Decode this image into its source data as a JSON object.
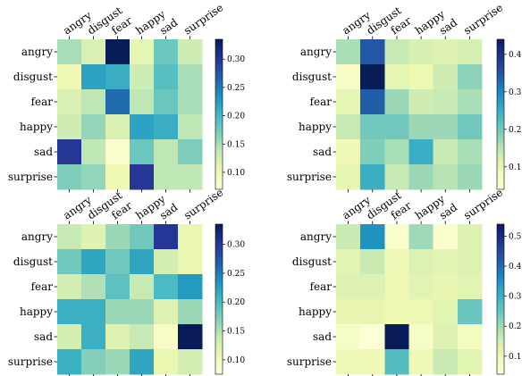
{
  "chart_data": [
    {
      "type": "heatmap",
      "title": "",
      "xlabel": "",
      "ylabel": "",
      "x_categories": [
        "angry",
        "disgust",
        "fear",
        "happy",
        "sad",
        "surprise"
      ],
      "y_categories": [
        "angry",
        "disgust",
        "fear",
        "happy",
        "sad",
        "surprise"
      ],
      "colormap": "YlGnBu",
      "colorbar": {
        "vmin": 0.07,
        "vmax": 0.335,
        "ticks": [
          0.1,
          0.15,
          0.2,
          0.25,
          0.3
        ],
        "tick_labels": [
          "0.10",
          "0.15",
          "0.20",
          "0.25",
          "0.30"
        ]
      },
      "values": [
        [
          0.15,
          0.12,
          0.335,
          0.11,
          0.18,
          0.13
        ],
        [
          0.1,
          0.22,
          0.21,
          0.13,
          0.19,
          0.15
        ],
        [
          0.12,
          0.14,
          0.26,
          0.14,
          0.18,
          0.15
        ],
        [
          0.13,
          0.16,
          0.12,
          0.22,
          0.21,
          0.14
        ],
        [
          0.3,
          0.14,
          0.08,
          0.18,
          0.14,
          0.17
        ],
        [
          0.17,
          0.16,
          0.1,
          0.3,
          0.14,
          0.14
        ]
      ]
    },
    {
      "type": "heatmap",
      "title": "",
      "xlabel": "",
      "ylabel": "",
      "x_categories": [
        "angry",
        "disgust",
        "fear",
        "happy",
        "sad",
        "surprise"
      ],
      "y_categories": [
        "angry",
        "disgust",
        "fear",
        "happy",
        "sad",
        "surprise"
      ],
      "colormap": "YlGnBu",
      "colorbar": {
        "vmin": 0.04,
        "vmax": 0.44,
        "ticks": [
          0.1,
          0.2,
          0.3,
          0.4
        ],
        "tick_labels": [
          "0.1",
          "0.2",
          "0.3",
          "0.4"
        ]
      },
      "values": [
        [
          0.16,
          0.35,
          0.14,
          0.12,
          0.11,
          0.12
        ],
        [
          0.06,
          0.44,
          0.1,
          0.09,
          0.13,
          0.18
        ],
        [
          0.1,
          0.34,
          0.17,
          0.13,
          0.14,
          0.16
        ],
        [
          0.14,
          0.2,
          0.2,
          0.17,
          0.17,
          0.2
        ],
        [
          0.08,
          0.19,
          0.16,
          0.25,
          0.14,
          0.16
        ],
        [
          0.1,
          0.25,
          0.14,
          0.17,
          0.15,
          0.17
        ]
      ]
    },
    {
      "type": "heatmap",
      "title": "",
      "xlabel": "",
      "ylabel": "",
      "x_categories": [
        "angry",
        "disgust",
        "fear",
        "happy",
        "sad",
        "surprise"
      ],
      "y_categories": [
        "angry",
        "disgust",
        "fear",
        "happy",
        "sad",
        "surprise"
      ],
      "colormap": "YlGnBu",
      "colorbar": {
        "vmin": 0.075,
        "vmax": 0.335,
        "ticks": [
          0.1,
          0.15,
          0.2,
          0.25,
          0.3
        ],
        "tick_labels": [
          "0.10",
          "0.15",
          "0.20",
          "0.25",
          "0.30"
        ]
      },
      "values": [
        [
          0.14,
          0.12,
          0.16,
          0.18,
          0.3,
          0.11
        ],
        [
          0.18,
          0.22,
          0.18,
          0.22,
          0.13,
          0.11
        ],
        [
          0.13,
          0.15,
          0.19,
          0.14,
          0.2,
          0.23
        ],
        [
          0.21,
          0.21,
          0.16,
          0.16,
          0.12,
          0.16
        ],
        [
          0.13,
          0.21,
          0.12,
          0.14,
          0.09,
          0.335
        ],
        [
          0.21,
          0.17,
          0.16,
          0.22,
          0.11,
          0.13
        ]
      ]
    },
    {
      "type": "heatmap",
      "title": "",
      "xlabel": "",
      "ylabel": "",
      "x_categories": [
        "angry",
        "disgust",
        "fear",
        "happy",
        "sad",
        "surprise"
      ],
      "y_categories": [
        "angry",
        "disgust",
        "fear",
        "happy",
        "sad",
        "surprise"
      ],
      "colormap": "YlGnBu",
      "colorbar": {
        "vmin": 0.04,
        "vmax": 0.54,
        "ticks": [
          0.1,
          0.2,
          0.3,
          0.4,
          0.5
        ],
        "tick_labels": [
          "0.1",
          "0.2",
          "0.3",
          "0.4",
          "0.5"
        ]
      },
      "values": [
        [
          0.16,
          0.35,
          0.06,
          0.2,
          0.06,
          0.13
        ],
        [
          0.12,
          0.16,
          0.09,
          0.13,
          0.12,
          0.13
        ],
        [
          0.13,
          0.13,
          0.1,
          0.12,
          0.11,
          0.12
        ],
        [
          0.11,
          0.11,
          0.1,
          0.1,
          0.12,
          0.25
        ],
        [
          0.07,
          0.05,
          0.54,
          0.07,
          0.13,
          0.08
        ],
        [
          0.09,
          0.09,
          0.27,
          0.09,
          0.16,
          0.12
        ]
      ]
    }
  ]
}
